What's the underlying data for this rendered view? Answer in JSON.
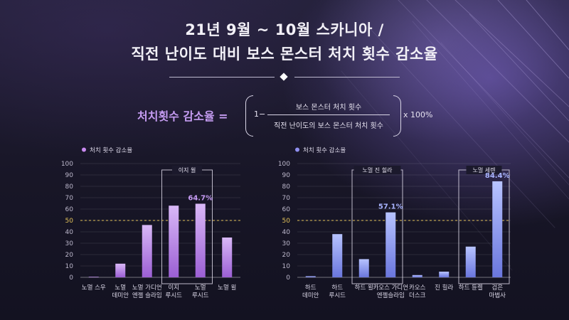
{
  "title": {
    "line1": "21년 9월 ~ 10월 스카니아 /",
    "line2": "직전 난이도 대비 보스 몬스터 처치 횟수 감소율"
  },
  "formula": {
    "label": "처치횟수 감소율 =",
    "one": "1−",
    "numerator": "보스 몬스터 처치 횟수",
    "denominator": "직전 난이도의 보스 몬스터 처치 횟수",
    "multiplier": "x 100%"
  },
  "colors": {
    "left_bar_top": "#d9b8f7",
    "left_bar_bottom": "#9b5fd4",
    "right_bar_top": "#b7c3ff",
    "right_bar_bottom": "#6a76dd",
    "reference_line": "#e3c25a",
    "left_legend": "#c98af0",
    "right_legend": "#8f8ff0"
  },
  "chart_data": [
    {
      "type": "bar",
      "legend": "처치 횟수 감소율",
      "legend_position": "top-left",
      "ylim": [
        0,
        100
      ],
      "yticks": [
        0,
        10,
        20,
        30,
        40,
        50,
        60,
        70,
        80,
        90,
        100
      ],
      "reference_line": 50,
      "grid": true,
      "categories": [
        [
          "노멀 스우"
        ],
        [
          "노멀",
          "데미안"
        ],
        [
          "노멀 가디언",
          "엔젤 슬라임"
        ],
        [
          "이지",
          "루시드"
        ],
        [
          "노멀",
          "루시드"
        ],
        [
          "노멀 윌"
        ]
      ],
      "values": [
        0,
        12,
        46,
        63,
        64.7,
        35
      ],
      "data_labels": [
        {
          "index": 4,
          "text": "64.7%"
        }
      ],
      "groups": [
        {
          "label": "이지 윌",
          "from": 3,
          "to": 4
        }
      ]
    },
    {
      "type": "bar",
      "legend": "처치 횟수 감소율",
      "legend_position": "top-left",
      "ylim": [
        0,
        100
      ],
      "yticks": [
        0,
        10,
        20,
        30,
        40,
        50,
        60,
        70,
        80,
        90,
        100
      ],
      "reference_line": 50,
      "grid": true,
      "categories": [
        [
          "하드",
          "데미안"
        ],
        [
          "하드",
          "루시드"
        ],
        [
          "하드 윌"
        ],
        [
          "카오스 가디언",
          "엔젤슬라임"
        ],
        [
          "카오스",
          "더스크"
        ],
        [
          "진 힐라"
        ],
        [
          "하드 듄켈"
        ],
        [
          "검은",
          "마법사"
        ]
      ],
      "values": [
        1,
        38,
        16,
        57.1,
        2,
        5,
        27,
        84.4
      ],
      "data_labels": [
        {
          "index": 3,
          "text": "57.1%"
        },
        {
          "index": 7,
          "text": "84.4%"
        }
      ],
      "groups": [
        {
          "label": "노멀 진 힐라",
          "from": 2,
          "to": 3
        },
        {
          "label": "노멀 세렌",
          "from": 6,
          "to": 7
        }
      ]
    }
  ]
}
